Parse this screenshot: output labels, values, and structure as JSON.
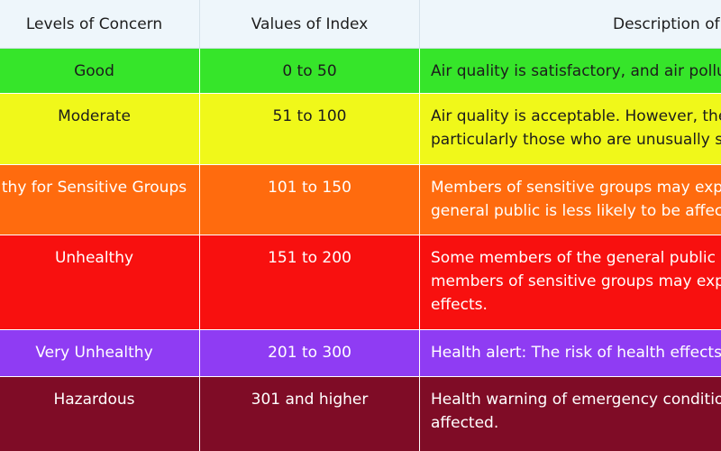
{
  "header": {
    "col1": "Levels of Concern",
    "col2": "Values of Index",
    "col3": "Description of"
  },
  "rows": [
    {
      "level": "Good",
      "range": "0 to 50",
      "desc1": "Air quality is satisfactory, and air pollu",
      "desc2": "",
      "desc3": "",
      "bg": "#36e52a",
      "text": "#1c1c1c"
    },
    {
      "level": "Moderate",
      "range": "51 to 100",
      "desc1": "Air quality is acceptable. However, the",
      "desc2": "particularly those who are unusually s",
      "desc3": "",
      "bg": "#f0f81a",
      "text": "#1c1c1c"
    },
    {
      "level": "thy for Sensitive Groups",
      "range": "101 to 150",
      "desc1": "Members of sensitive groups may exp",
      "desc2": "general public is less likely to be affec",
      "desc3": "",
      "bg": "#ff6b0e",
      "text": "#ffffff"
    },
    {
      "level": "Unhealthy",
      "range": "151 to 200",
      "desc1": "Some members of the general public",
      "desc2": "members of sensitive groups may exp",
      "desc3": "effects.",
      "bg": "#f8100f",
      "text": "#ffffff"
    },
    {
      "level": "Very Unhealthy",
      "range": "201 to 300",
      "desc1": "Health alert: The risk of health effects",
      "desc2": "",
      "desc3": "",
      "bg": "#8f3cf3",
      "text": "#ffffff"
    },
    {
      "level": "Hazardous",
      "range": "301 and higher",
      "desc1": "Health warning of emergency conditio",
      "desc2": "affected.",
      "desc3": "",
      "bg": "#7f0c26",
      "text": "#ffffff"
    }
  ]
}
